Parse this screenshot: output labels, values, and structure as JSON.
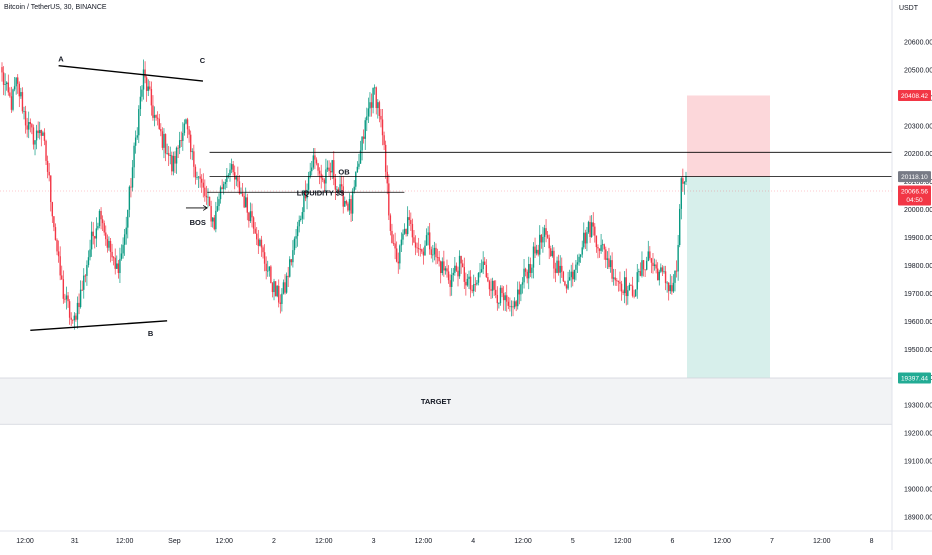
{
  "header": {
    "symbol_title": "Bitcoin / TetherUS, 30, BINANCE",
    "currency": "USDT"
  },
  "chart_data": {
    "type": "candlestick",
    "symbol": "Bitcoin / TetherUS",
    "interval": "30",
    "exchange": "BINANCE",
    "y_unit": "USDT",
    "ylim": [
      18850,
      20750
    ],
    "y_ticks": [
      "20600.00",
      "20500.00",
      "20400.00",
      "20300.00",
      "20200.00",
      "20100.00",
      "20000.00",
      "19900.00",
      "19800.00",
      "19700.00",
      "19600.00",
      "19500.00",
      "19400.00",
      "19300.00",
      "19200.00",
      "19100.00",
      "19000.00",
      "18900.00"
    ],
    "x_ticks": [
      "12:00",
      "31",
      "12:00",
      "Sep",
      "12:00",
      "2",
      "12:00",
      "3",
      "12:00",
      "4",
      "12:00",
      "5",
      "12:00",
      "6",
      "12:00",
      "7",
      "12:00",
      "8"
    ],
    "price_labels": {
      "stop": {
        "value": "20408.42",
        "price": 20408.42,
        "color": "#f23645"
      },
      "entry": {
        "value": "20118.10",
        "price": 20118.1,
        "color": "#787b86"
      },
      "last": {
        "value": "20066.56",
        "countdown": "04:50",
        "price": 20066.56,
        "color": "#f23645"
      },
      "target": {
        "value": "19397.44",
        "price": 19397.44,
        "color": "#22ab94"
      }
    },
    "annotations": [
      {
        "text": "A",
        "price": 20530,
        "time": 12.5
      },
      {
        "text": "B",
        "price": 19548,
        "time": 31.5
      },
      {
        "text": "C",
        "price": 20525,
        "time": 42.5
      },
      {
        "text": "BOS",
        "price": 19945,
        "time": 41.5
      },
      {
        "text": "OB",
        "price": 20125,
        "time": 72.5
      },
      {
        "text": "LIQUIDITY $$",
        "price": 20050,
        "time": 67.5
      },
      {
        "text": "TARGET",
        "price": 19305,
        "time": 92
      }
    ],
    "seed_closes": [
      20480,
      20420,
      20380,
      20450,
      20400,
      20320,
      20280,
      20250,
      20300,
      20220,
      20100,
      19950,
      19800,
      19700,
      19650,
      19580,
      19660,
      19720,
      19810,
      19890,
      19950,
      20000,
      19900,
      19850,
      19780,
      19820,
      19900,
      20050,
      20200,
      20350,
      20480,
      20420,
      20350,
      20300,
      20250,
      20220,
      20150,
      20200,
      20280,
      20300,
      20200,
      20150,
      20100,
      20050,
      20000,
      19950,
      20050,
      20100,
      20150,
      20120,
      20080,
      20050,
      20000,
      19980,
      19920,
      19850,
      19800,
      19750,
      19700,
      19680,
      19720,
      19800,
      19880,
      19950,
      20050,
      20120,
      20180,
      20150,
      20100,
      20120,
      20150,
      20080,
      20050,
      20030,
      20000,
      20100,
      20200,
      20300,
      20380,
      20420,
      20350,
      20200,
      20000,
      19850,
      19820,
      19900,
      19950,
      19920,
      19880,
      19850,
      19900,
      19870,
      19830,
      19800,
      19780,
      19750,
      19780,
      19800,
      19760,
      19730,
      19700,
      19760,
      19800,
      19760,
      19720,
      19700,
      19680,
      19650,
      19620,
      19680,
      19720,
      19780,
      19800,
      19850,
      19880,
      19900,
      19870,
      19820,
      19780,
      19760,
      19740,
      19780,
      19840,
      19880,
      19920,
      19940,
      19900,
      19860,
      19840,
      19800,
      19760,
      19740,
      19730,
      19700,
      19720,
      19760,
      19800,
      19840,
      19800,
      19780,
      19760,
      19740,
      19720,
      19780,
      20080,
      20120
    ]
  }
}
